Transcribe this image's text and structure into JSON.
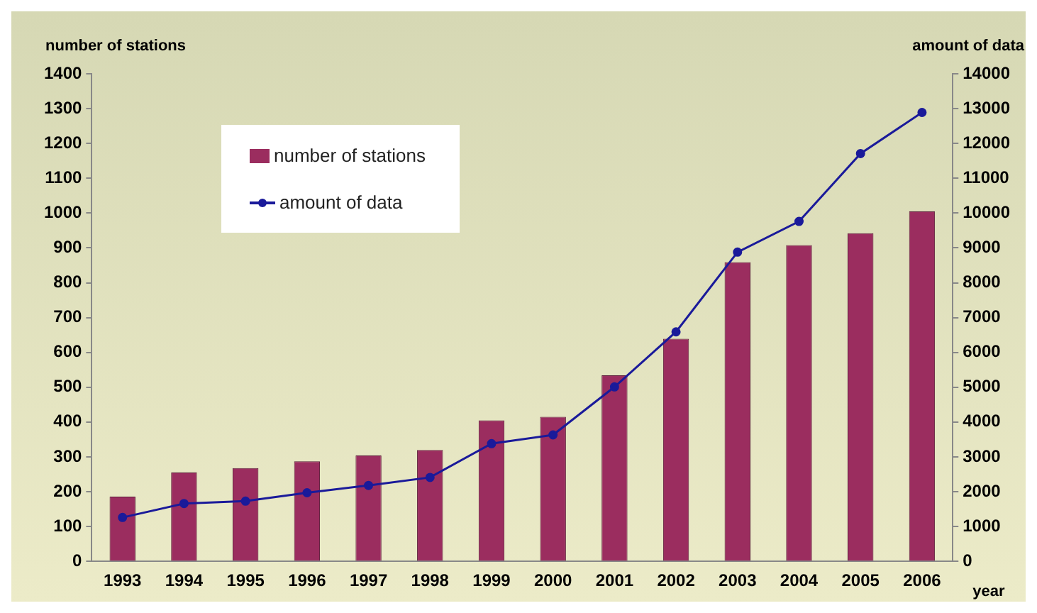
{
  "chart_data": {
    "type": "bar",
    "ylabel": "number of stations",
    "y2label": "amount of data",
    "xlabel": "year",
    "categories": [
      "1993",
      "1994",
      "1995",
      "1996",
      "1997",
      "1998",
      "1999",
      "2000",
      "2001",
      "2002",
      "2003",
      "2004",
      "2005",
      "2006"
    ],
    "series": [
      {
        "name": "number of stations",
        "color": "#9b2d5f",
        "values": [
          186,
          255,
          268,
          287,
          304,
          320,
          405,
          415,
          534,
          639,
          859,
          908,
          942,
          1005
        ]
      },
      {
        "name": "amount of data",
        "type": "line",
        "axis": "y2",
        "color": "#1a1a9a",
        "marker": "circle",
        "values": [
          1260,
          1660,
          1730,
          1970,
          2180,
          2410,
          3380,
          3630,
          5010,
          6590,
          8880,
          9760,
          11710,
          12890
        ]
      }
    ],
    "ylim": [
      0,
      1400
    ],
    "yticks": [
      0,
      100,
      200,
      300,
      400,
      500,
      600,
      700,
      800,
      900,
      1000,
      1100,
      1200,
      1300,
      1400
    ],
    "y2lim": [
      0,
      14000
    ],
    "y2ticks": [
      0,
      1000,
      2000,
      3000,
      4000,
      5000,
      6000,
      7000,
      8000,
      9000,
      10000,
      11000,
      12000,
      13000,
      14000
    ],
    "grid": false,
    "legend": "top left"
  }
}
